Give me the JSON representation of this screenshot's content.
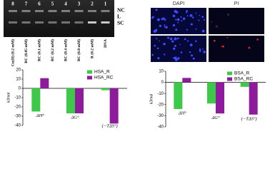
{
  "gel": {
    "lanes": [
      "8",
      "7",
      "6",
      "5",
      "4",
      "3",
      "2",
      "1"
    ],
    "bands": [
      "NC",
      "L",
      "SC"
    ],
    "lane_labels": [
      "Cu(II) (0.2 mM)",
      "RC (0.05 mM)",
      "RC (0.1 mM)",
      "RC (0.2 mM)",
      "RC (0.4 mM)",
      "RC (0.8 mM)",
      "R (0.2 mM)",
      "DNA"
    ]
  },
  "microscopy": {
    "columns": [
      "DAPI",
      "PI"
    ]
  },
  "chart_data": [
    {
      "type": "bar",
      "y_label": "kJ/mol",
      "categories": [
        "ΔH°",
        "ΔG°",
        "(−TΔS°)"
      ],
      "series": [
        {
          "name": "HSA_R",
          "color": "#3ec84a",
          "values": [
            -25,
            -27,
            -2
          ]
        },
        {
          "name": "HSA_RC",
          "color": "#8e1a9c",
          "values": [
            11,
            -27,
            -38
          ]
        }
      ],
      "ylim": [
        -40,
        20
      ],
      "yticks": [
        20,
        10,
        0,
        -10,
        -20,
        -30,
        -40
      ],
      "legend": "upper right"
    },
    {
      "type": "bar",
      "y_label": "kJ/mol",
      "categories": [
        "ΔH°",
        "ΔG°",
        "(−TΔS°)"
      ],
      "series": [
        {
          "name": "BSA_R",
          "color": "#3ec84a",
          "values": [
            -24,
            -19,
            -4
          ]
        },
        {
          "name": "BSA_RC",
          "color": "#8e1a9c",
          "values": [
            4,
            -28,
            -29
          ]
        }
      ],
      "ylim": [
        -40,
        10
      ],
      "yticks": [
        10,
        0,
        -10,
        -20,
        -30,
        -40
      ],
      "legend": "upper right"
    }
  ]
}
